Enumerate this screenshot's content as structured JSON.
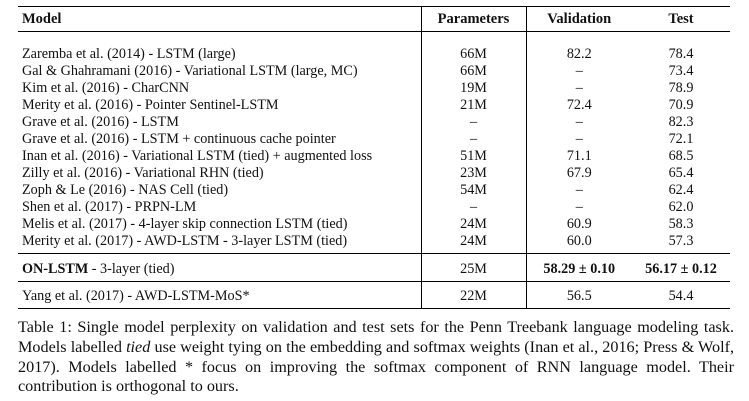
{
  "table": {
    "headers": {
      "model": "Model",
      "params": "Parameters",
      "validation": "Validation",
      "test": "Test"
    },
    "rows": [
      {
        "model": "Zaremba et al. (2014) - LSTM (large)",
        "params": "66M",
        "validation": "82.2",
        "test": "78.4"
      },
      {
        "model": "Gal & Ghahramani (2016) - Variational LSTM (large, MC)",
        "params": "66M",
        "validation": "–",
        "test": "73.4"
      },
      {
        "model": "Kim et al. (2016) - CharCNN",
        "params": "19M",
        "validation": "–",
        "test": "78.9"
      },
      {
        "model": "Merity et al. (2016) - Pointer Sentinel-LSTM",
        "params": "21M",
        "validation": "72.4",
        "test": "70.9"
      },
      {
        "model": "Grave et al. (2016) - LSTM",
        "params": "–",
        "validation": "–",
        "test": "82.3"
      },
      {
        "model": "Grave et al. (2016) - LSTM + continuous cache pointer",
        "params": "–",
        "validation": "–",
        "test": "72.1"
      },
      {
        "model": "Inan et al. (2016) - Variational LSTM (tied) + augmented loss",
        "params": "51M",
        "validation": "71.1",
        "test": "68.5"
      },
      {
        "model": "Zilly et al. (2016) - Variational RHN (tied)",
        "params": "23M",
        "validation": "67.9",
        "test": "65.4"
      },
      {
        "model": "Zoph & Le (2016) - NAS Cell (tied)",
        "params": "54M",
        "validation": "–",
        "test": "62.4"
      },
      {
        "model": "Shen et al. (2017) - PRPN-LM",
        "params": "–",
        "validation": "–",
        "test": "62.0"
      },
      {
        "model": "Melis et al. (2017) - 4-layer skip connection LSTM (tied)",
        "params": "24M",
        "validation": "60.9",
        "test": "58.3"
      },
      {
        "model": "Merity et al. (2017) - AWD-LSTM - 3-layer LSTM (tied)",
        "params": "24M",
        "validation": "60.0",
        "test": "57.3"
      }
    ],
    "ours": {
      "model_bold": "ON-LSTM",
      "model_rest": " - 3-layer (tied)",
      "params": "25M",
      "validation": "58.29 ± 0.10",
      "test": "56.17 ± 0.12"
    },
    "other": {
      "model": "Yang et al. (2017) - AWD-LSTM-MoS*",
      "params": "22M",
      "validation": "56.5",
      "test": "54.4"
    }
  },
  "caption": {
    "part1": "Table 1: Single model perplexity on validation and test sets for the Penn Treebank language modeling task. Models labelled ",
    "italic": "tied",
    "part2": " use weight tying on the embedding and softmax weights (Inan et al., 2016; Press & Wolf, 2017). Models labelled * focus on improving the softmax component of RNN language model. Their contribution is orthogonal to ours."
  }
}
